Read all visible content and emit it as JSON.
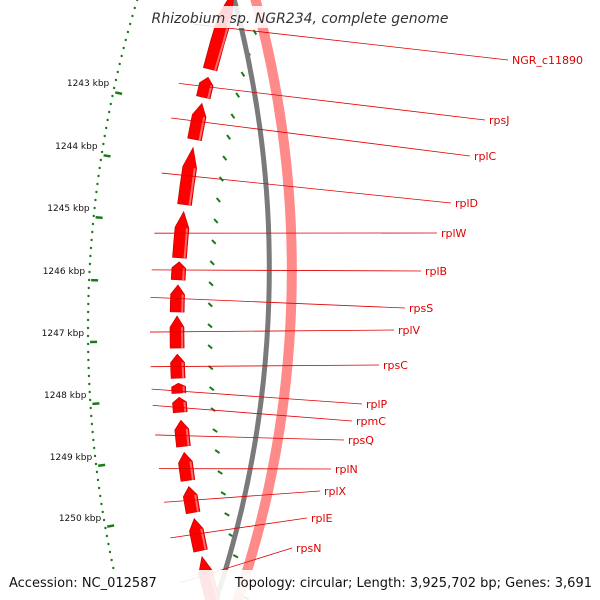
{
  "title": "Rhizobium sp. NGR234, complete genome",
  "accession": "Accession: NC_012587",
  "topology": "Topology: circular; Length: 3,925,702 bp; Genes: 3,691",
  "colors": {
    "backbone": "#7a7a7a",
    "forward_gene": "#ff0000",
    "forward_gene_light": "#ff6a6a",
    "reverse_track": "#ff8a8a",
    "label": "#e00000",
    "tick": "#1a7a1a"
  },
  "kbp_ticks": [
    {
      "label": "1243 kbp"
    },
    {
      "label": "1244 kbp"
    },
    {
      "label": "1245 kbp"
    },
    {
      "label": "1246 kbp"
    },
    {
      "label": "1247 kbp"
    },
    {
      "label": "1248 kbp"
    },
    {
      "label": "1249 kbp"
    },
    {
      "label": "1250 kbp"
    }
  ],
  "genes": [
    {
      "name": "NGR_c11890"
    },
    {
      "name": "rpsJ"
    },
    {
      "name": "rplC"
    },
    {
      "name": "rplD"
    },
    {
      "name": "rplW"
    },
    {
      "name": "rplB"
    },
    {
      "name": "rpsS"
    },
    {
      "name": "rplV"
    },
    {
      "name": "rpsC"
    },
    {
      "name": "rplP"
    },
    {
      "name": "rpmC"
    },
    {
      "name": "rpsQ"
    },
    {
      "name": "rplN"
    },
    {
      "name": "rplX"
    },
    {
      "name": "rplE"
    },
    {
      "name": "rpsN"
    }
  ]
}
